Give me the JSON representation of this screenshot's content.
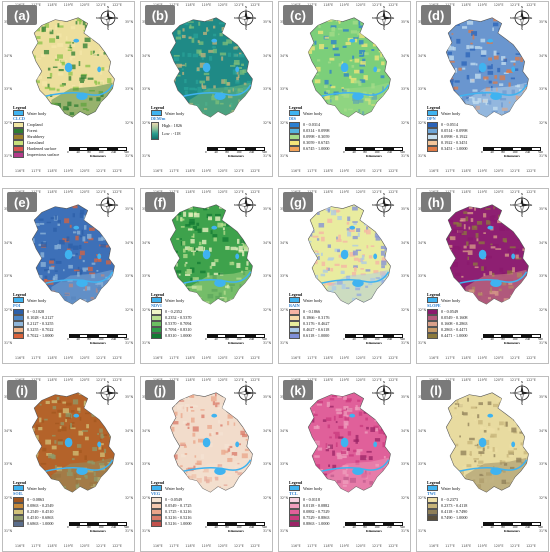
{
  "common": {
    "legend_title": "Legend",
    "water_label": "Water body",
    "km_label": "Kilometers",
    "scale_nums": [
      "0",
      "40",
      "80",
      "160",
      "240",
      "320"
    ],
    "lon_ticks": [
      "116°E",
      "117°E",
      "118°E",
      "119°E",
      "120°E",
      "121°E",
      "122°E"
    ],
    "lat_ticks": [
      "35°N",
      "34°N",
      "33°N",
      "32°N",
      "31°N"
    ],
    "compass_letters": {
      "n": "N",
      "e": "E",
      "s": "S",
      "w": "W"
    },
    "water_color": "#3fb3f0"
  },
  "panels": [
    {
      "label": "(a)",
      "var": "CLCD",
      "type": "categorical",
      "items": [
        {
          "text": "Cropland",
          "color": "#f1e6a2"
        },
        {
          "text": "Forest",
          "color": "#2e7d32"
        },
        {
          "text": "Shrubbery",
          "color": "#9b7f2a"
        },
        {
          "text": "Grassland",
          "color": "#c8e07a"
        },
        {
          "text": "Hardened surface",
          "color": "#d9534f"
        },
        {
          "text": "Impervious surface",
          "color": "#b33a8a"
        }
      ],
      "base": "#eddf9d",
      "speck": [
        "#8bc34a",
        "#2e7d32",
        "#f4e7aa"
      ]
    },
    {
      "label": "(b)",
      "var": "DEM/m",
      "type": "gradient",
      "items": [
        {
          "text": "High : 1826"
        },
        {
          "text": "Low : -118"
        }
      ],
      "grad": [
        "#e8d7b0",
        "#9bc39a",
        "#2a9d8f",
        "#14706b"
      ],
      "base": "#1f8a86",
      "speck": [
        "#2aa198",
        "#7fbf7a",
        "#c9b37a"
      ]
    },
    {
      "label": "(c)",
      "var": "DIS",
      "type": "classes",
      "items": [
        {
          "text": "0 - 0.0314",
          "color": "#2b7fd0"
        },
        {
          "text": "0.0314 - 0.0998",
          "color": "#55b3e0"
        },
        {
          "text": "0.0998 - 0.3059",
          "color": "#a6dc8a"
        },
        {
          "text": "0.3059 - 0.6745",
          "color": "#f5e57a"
        },
        {
          "text": "0.6745 - 1.0000",
          "color": "#f2a35a"
        }
      ],
      "base": "#7ccf7a",
      "speck": [
        "#2b7fd0",
        "#a6dc8a",
        "#f5e57a"
      ]
    },
    {
      "label": "(d)",
      "var": "DPN",
      "type": "classes",
      "items": [
        {
          "text": "0 - 0.0514",
          "color": "#2b63b8"
        },
        {
          "text": "0.0514 - 0.0998",
          "color": "#6fa6d8"
        },
        {
          "text": "0.0998 - 0.1922",
          "color": "#c6dff0"
        },
        {
          "text": "0.1922 - 0.3451",
          "color": "#f3c59a"
        },
        {
          "text": "0.3451 - 1.0000",
          "color": "#e07a45"
        }
      ],
      "base": "#6a96cf",
      "speck": [
        "#2b63b8",
        "#c6dff0",
        "#e07a45"
      ]
    },
    {
      "label": "(e)",
      "var": "POI",
      "type": "classes",
      "items": [
        {
          "text": "0 - 0.1028",
          "color": "#2c5fa8"
        },
        {
          "text": "0.1028 - 0.2127",
          "color": "#4c86c6"
        },
        {
          "text": "0.2127 - 0.3255",
          "color": "#8fb6da"
        },
        {
          "text": "0.3255 - 0.7022",
          "color": "#f1b58a"
        },
        {
          "text": "0.7022 - 1.0000",
          "color": "#d9633c"
        }
      ],
      "base": "#3d70b8",
      "speck": [
        "#2c5fa8",
        "#8fb6da",
        "#d9633c"
      ]
    },
    {
      "label": "(f)",
      "var": "NDVI",
      "type": "classes",
      "items": [
        {
          "text": "0 - 0.2352",
          "color": "#f1f4c7"
        },
        {
          "text": "0.2352 - 0.5370",
          "color": "#b9de8f"
        },
        {
          "text": "0.5370 - 0.7094",
          "color": "#6cbf62"
        },
        {
          "text": "0.7094 - 0.8310",
          "color": "#2e9e48"
        },
        {
          "text": "0.8310 - 1.0000",
          "color": "#137a33"
        }
      ],
      "base": "#3ea24c",
      "speck": [
        "#137a33",
        "#b9de8f",
        "#f1f4c7"
      ]
    },
    {
      "label": "(g)",
      "var": "RAIN",
      "type": "classes",
      "items": [
        {
          "text": "0 - 0.1866",
          "color": "#f6b3a4"
        },
        {
          "text": "0.1866 - 0.3176",
          "color": "#f7d9a9"
        },
        {
          "text": "0.3176 - 0.4627",
          "color": "#e7ee9c"
        },
        {
          "text": "0.4627 - 0.6118",
          "color": "#a9c9e8"
        },
        {
          "text": "0.6118 - 1.0000",
          "color": "#7f8fd8"
        }
      ],
      "base": "#e9ec9f",
      "speck": [
        "#f6b3a4",
        "#a9c9e8",
        "#7f8fd8"
      ]
    },
    {
      "label": "(h)",
      "var": "SLOPE",
      "type": "classes",
      "items": [
        {
          "text": "0 - 0.0549",
          "color": "#8a1a6e"
        },
        {
          "text": "0.0549 - 0.1608",
          "color": "#b65a7e"
        },
        {
          "text": "0.1608 - 0.2863",
          "color": "#d9a08a"
        },
        {
          "text": "0.2863 - 0.4471",
          "color": "#c89c6a"
        },
        {
          "text": "0.4471 - 1.0000",
          "color": "#8c7a3c"
        }
      ],
      "base": "#8e1f72",
      "speck": [
        "#8a1a6e",
        "#d9a08a",
        "#8c7a3c"
      ]
    },
    {
      "label": "(i)",
      "var": "SOIL",
      "type": "classes",
      "items": [
        {
          "text": "0 - 0.0863",
          "color": "#a3571f"
        },
        {
          "text": "0.0863 - 0.2549",
          "color": "#c78a3a"
        },
        {
          "text": "0.2549 - 0.4510",
          "color": "#d2c27a"
        },
        {
          "text": "0.4510 - 0.6863",
          "color": "#8f9a6a"
        },
        {
          "text": "0.6863 - 1.0000",
          "color": "#5b6e8c"
        }
      ],
      "base": "#b4632a",
      "speck": [
        "#a3571f",
        "#8f9a6a",
        "#d2c27a"
      ]
    },
    {
      "label": "(j)",
      "var": "VEG",
      "type": "classes",
      "items": [
        {
          "text": "0 - 0.0549",
          "color": "#f4e3d3"
        },
        {
          "text": "0.0549 - 0.1725",
          "color": "#f3c9b0"
        },
        {
          "text": "0.1725 - 0.3216",
          "color": "#eaa58a"
        },
        {
          "text": "0.3216 - 0.5216",
          "color": "#d97a68"
        },
        {
          "text": "0.5216 - 1.0000",
          "color": "#c3514c"
        }
      ],
      "base": "#f2dccb",
      "speck": [
        "#eaa58a",
        "#f4e3d3",
        "#d97a68"
      ]
    },
    {
      "label": "(k)",
      "var": "TCL",
      "type": "classes",
      "items": [
        {
          "text": "0 - 0.0118",
          "color": "#f6d2df"
        },
        {
          "text": "0.0118 - 0.0882",
          "color": "#ef9fbd"
        },
        {
          "text": "0.0882 - 0.7529",
          "color": "#e0609a"
        },
        {
          "text": "0.7529 - 0.8863",
          "color": "#c93a7e"
        },
        {
          "text": "0.8863 - 1.0000",
          "color": "#9a2466"
        }
      ],
      "base": "#e0609a",
      "speck": [
        "#c93a7e",
        "#ef9fbd",
        "#9a2466"
      ]
    },
    {
      "label": "(l)",
      "var": "TWI",
      "type": "classes",
      "items": [
        {
          "text": "0 - 0.2373",
          "color": "#eedfa6"
        },
        {
          "text": "0.2373 - 0.4118",
          "color": "#c7b47a"
        },
        {
          "text": "0.4118 - 0.7490",
          "color": "#8f7f58"
        },
        {
          "text": "0.7490 - 1.0000",
          "color": "#5a4f3a"
        }
      ],
      "base": "#e8dba0",
      "speck": [
        "#c7b47a",
        "#8f7f58",
        "#eedfa6"
      ]
    }
  ]
}
